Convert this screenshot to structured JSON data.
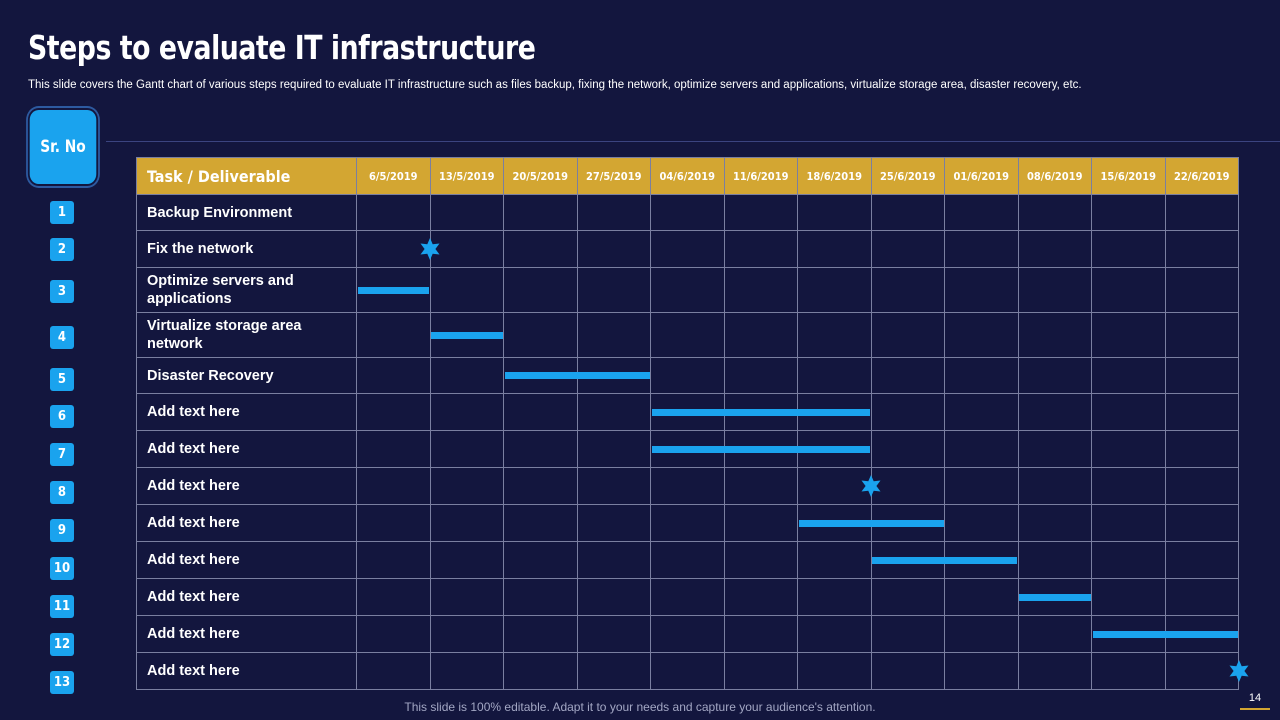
{
  "slide": {
    "title": "Steps to evaluate IT infrastructure",
    "subtitle": "This slide covers the Gantt chart of various  steps required  to evaluate  IT infrastructure  such as files backup, fixing the network,  optimize servers  and applications, virtualize  storage area,  disaster recovery,  etc.",
    "srno_label": "Sr. No",
    "footer": "This slide is 100% editable. Adapt it to your needs and capture your audience's attention.",
    "page_number": "14"
  },
  "colors": {
    "background": "#13163e",
    "header": "#d3a632",
    "accent": "#1aa3ee"
  },
  "chart_data": {
    "type": "table",
    "title": "Steps to evaluate IT infrastructure",
    "task_header": "Task / Deliverable",
    "dates": [
      "6/5/2019",
      "13/5/2019",
      "20/5/2019",
      "27/5/2019",
      "04/6/2019",
      "11/6/2019",
      "18/6/2019",
      "25/6/2019",
      "01/6/2019",
      "08/6/2019",
      "15/6/2019",
      "22/6/2019"
    ],
    "tasks": [
      {
        "no": "1",
        "name": "Backup Environment",
        "type": "none"
      },
      {
        "no": "2",
        "name": "Fix the network",
        "type": "milestone",
        "at": 1
      },
      {
        "no": "3",
        "name": "Optimize servers and applications",
        "type": "bar",
        "start": 0,
        "end": 1
      },
      {
        "no": "4",
        "name": "Virtualize storage area network",
        "type": "bar",
        "start": 1,
        "end": 2
      },
      {
        "no": "5",
        "name": "Disaster Recovery",
        "type": "bar",
        "start": 2,
        "end": 4
      },
      {
        "no": "6",
        "name": "Add  text here",
        "type": "bar",
        "start": 4,
        "end": 7
      },
      {
        "no": "7",
        "name": "Add  text here",
        "type": "bar",
        "start": 4,
        "end": 7
      },
      {
        "no": "8",
        "name": "Add  text here",
        "type": "milestone",
        "at": 7
      },
      {
        "no": "9",
        "name": "Add  text here",
        "type": "bar",
        "start": 6,
        "end": 8
      },
      {
        "no": "10",
        "name": "Add  text here",
        "type": "bar",
        "start": 7,
        "end": 9
      },
      {
        "no": "11",
        "name": "Add  text here",
        "type": "bar",
        "start": 9,
        "end": 10
      },
      {
        "no": "12",
        "name": "Add  text here",
        "type": "bar",
        "start": 10,
        "end": 12
      },
      {
        "no": "13",
        "name": "Add  text here",
        "type": "milestone",
        "at": 12
      }
    ]
  }
}
